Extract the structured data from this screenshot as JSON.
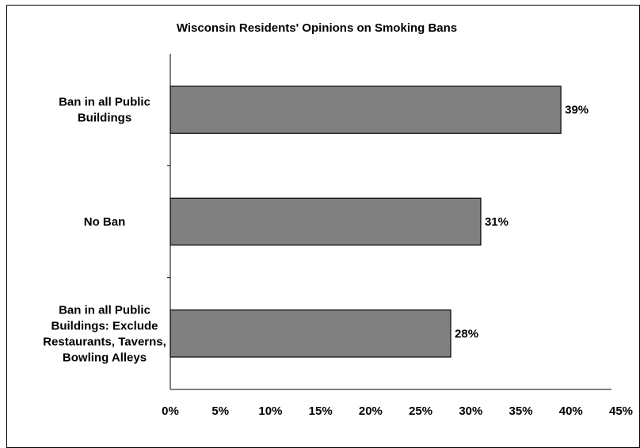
{
  "chart_data": {
    "type": "bar",
    "orientation": "horizontal",
    "title": "Wisconsin Residents' Opinions on Smoking Bans",
    "categories": [
      "Ban in all Public Buildings",
      "No Ban",
      "Ban in all Public Buildings: Exclude Restaurants, Taverns, Bowling Alleys"
    ],
    "values": [
      39,
      31,
      28
    ],
    "value_labels": [
      "39%",
      "31%",
      "28%"
    ],
    "xlim": [
      0,
      45
    ],
    "xticks": [
      "0%",
      "5%",
      "10%",
      "15%",
      "20%",
      "25%",
      "30%",
      "35%",
      "40%",
      "45%"
    ],
    "grid": false,
    "bar_color": "#808080",
    "bar_edge_color": "#000000"
  }
}
